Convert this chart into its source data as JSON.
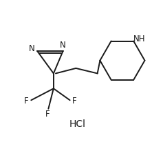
{
  "bg_color": "#ffffff",
  "line_color": "#1a1a1a",
  "line_width": 1.4,
  "font_size": 8.5,
  "hcl_font_size": 10,
  "xlim": [
    -1.2,
    2.5
  ],
  "ylim": [
    -1.35,
    1.3
  ]
}
